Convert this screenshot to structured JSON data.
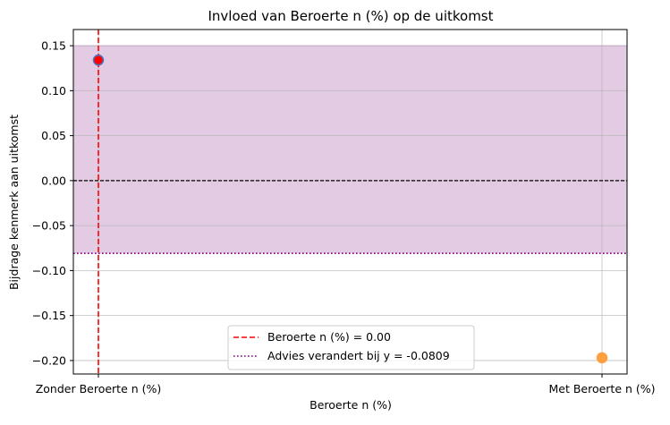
{
  "chart_data": {
    "type": "scatter",
    "title": "Invloed van Beroerte n (%) op de uitkomst",
    "xlabel": "Beroerte n (%)",
    "ylabel": "Bijdrage kenmerk aan uitkomst",
    "categories": [
      "Zonder Beroerte n (%)",
      "Met Beroerte n (%)"
    ],
    "points": [
      {
        "category": "Zonder Beroerte n (%)",
        "value": 0.134,
        "fill": "#ff0000",
        "edge": "#4a74c9"
      },
      {
        "category": "Met Beroerte n (%)",
        "value": -0.197,
        "fill": "#ffa040",
        "edge": "#ffa040"
      }
    ],
    "ylim": [
      -0.215,
      0.168
    ],
    "yticks": [
      0.15,
      0.1,
      0.05,
      0.0,
      -0.05,
      -0.1,
      -0.15,
      -0.2
    ],
    "ytick_labels": [
      "0.15",
      "0.10",
      "0.05",
      "0.00",
      "−0.05",
      "−0.10",
      "−0.15",
      "−0.20"
    ],
    "shaded_band": {
      "from": -0.0809,
      "to": 0.15,
      "color": "#e4cbe4"
    },
    "zero_line": {
      "value": 0.0,
      "color": "#000000"
    },
    "threshold_line": {
      "value": -0.0809,
      "color": "#800080"
    },
    "vertical_marker": {
      "category": "Zonder Beroerte n (%)",
      "color": "#ff0000"
    },
    "grid": true,
    "legend": {
      "placement": "lower-center",
      "entries": [
        {
          "label": "Beroerte n (%) = 0.00",
          "style": "dashed",
          "color": "#ff0000"
        },
        {
          "label": "Advies verandert bij y = -0.0809",
          "style": "dotted",
          "color": "#800080"
        }
      ]
    }
  }
}
